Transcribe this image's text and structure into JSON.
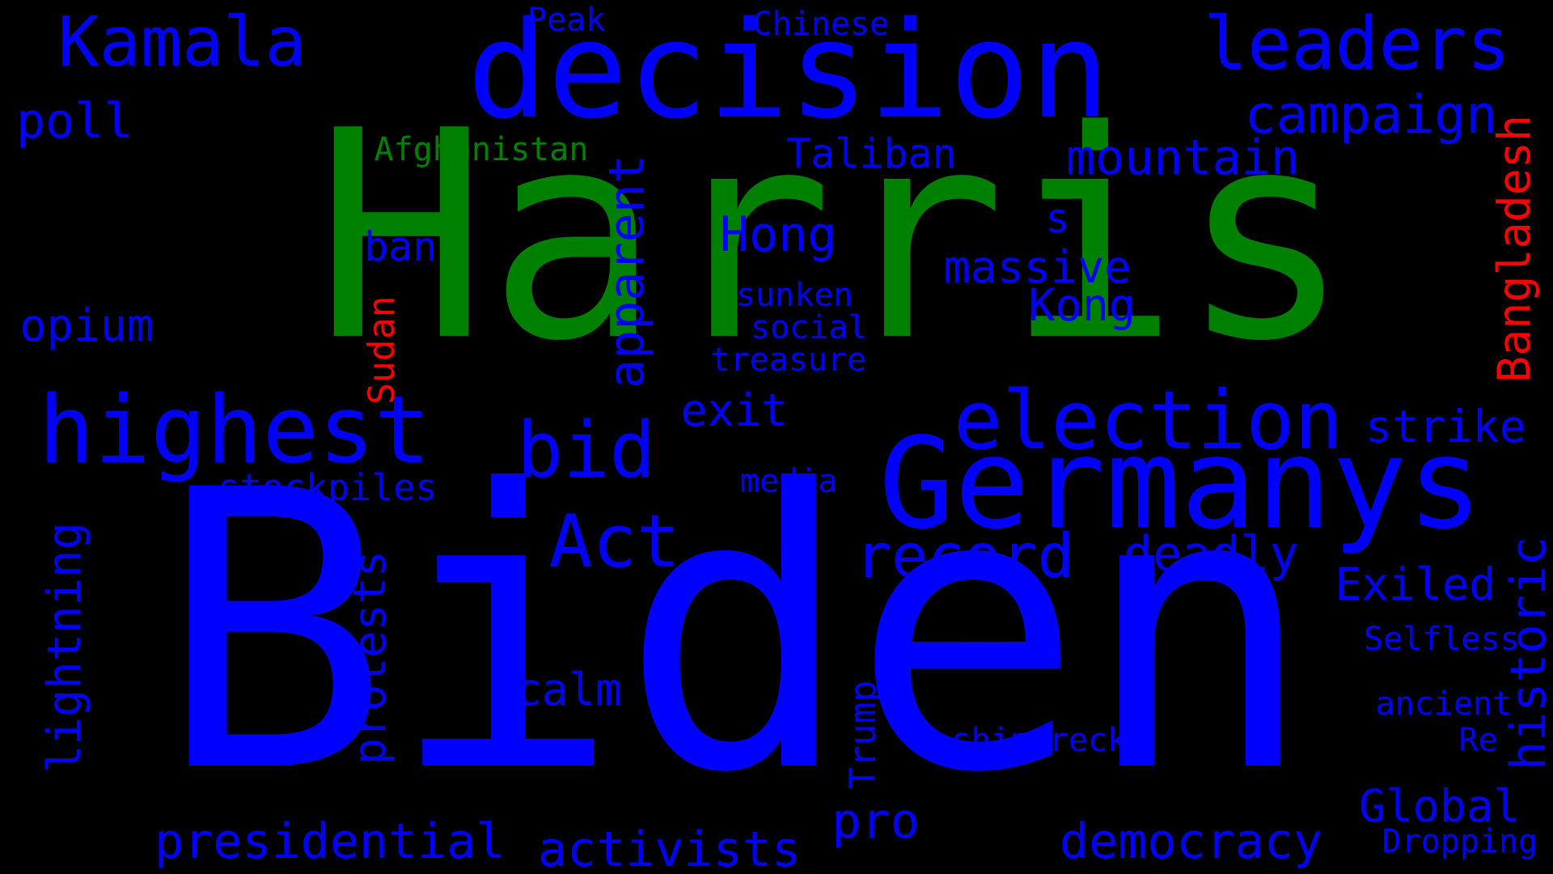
{
  "palette": {
    "blue": "#0000ff",
    "green": "#008000",
    "red": "#ff0000",
    "background": "#000000"
  },
  "words": [
    {
      "text": "Harris",
      "color": "green"
    },
    {
      "text": "Biden",
      "color": "blue"
    },
    {
      "text": "decision",
      "color": "blue"
    },
    {
      "text": "Germanys",
      "color": "blue"
    },
    {
      "text": "highest",
      "color": "blue"
    },
    {
      "text": "election",
      "color": "blue"
    },
    {
      "text": "leaders",
      "color": "blue"
    },
    {
      "text": "Kamala",
      "color": "blue"
    },
    {
      "text": "bid",
      "color": "blue"
    },
    {
      "text": "Act",
      "color": "blue"
    },
    {
      "text": "record",
      "color": "blue"
    },
    {
      "text": "campaign",
      "color": "blue"
    },
    {
      "text": "mountain",
      "color": "blue"
    },
    {
      "text": "democracy",
      "color": "blue"
    },
    {
      "text": "presidential",
      "color": "blue"
    },
    {
      "text": "activists",
      "color": "blue"
    },
    {
      "text": "Global",
      "color": "blue"
    },
    {
      "text": "pro",
      "color": "blue"
    },
    {
      "text": "Exiled",
      "color": "blue"
    },
    {
      "text": "deadly",
      "color": "blue"
    },
    {
      "text": "strike",
      "color": "blue"
    },
    {
      "text": "opium",
      "color": "blue"
    },
    {
      "text": "poll",
      "color": "blue"
    },
    {
      "text": "calm",
      "color": "blue"
    },
    {
      "text": "exit",
      "color": "blue"
    },
    {
      "text": "massive",
      "color": "blue"
    },
    {
      "text": "Kong",
      "color": "blue"
    },
    {
      "text": "Hong",
      "color": "blue"
    },
    {
      "text": "Taliban",
      "color": "blue"
    },
    {
      "text": "ban",
      "color": "blue"
    },
    {
      "text": "stockpiles",
      "color": "blue"
    },
    {
      "text": "shipwreck",
      "color": "blue"
    },
    {
      "text": "Selfless",
      "color": "blue"
    },
    {
      "text": "ancient",
      "color": "blue"
    },
    {
      "text": "Dropping",
      "color": "blue"
    },
    {
      "text": "Re",
      "color": "blue"
    },
    {
      "text": "s",
      "color": "blue"
    },
    {
      "text": "sunken",
      "color": "blue"
    },
    {
      "text": "social",
      "color": "blue"
    },
    {
      "text": "treasure",
      "color": "blue"
    },
    {
      "text": "media",
      "color": "blue"
    },
    {
      "text": "Peak",
      "color": "blue"
    },
    {
      "text": "Chinese",
      "color": "blue"
    },
    {
      "text": "Afghanistan",
      "color": "green"
    },
    {
      "text": "apparent",
      "color": "blue"
    },
    {
      "text": "protests",
      "color": "blue"
    },
    {
      "text": "lightning",
      "color": "blue"
    },
    {
      "text": "historic",
      "color": "blue"
    },
    {
      "text": "Trump",
      "color": "blue"
    },
    {
      "text": "Sudan",
      "color": "red"
    },
    {
      "text": "Bangladesh",
      "color": "red"
    }
  ]
}
